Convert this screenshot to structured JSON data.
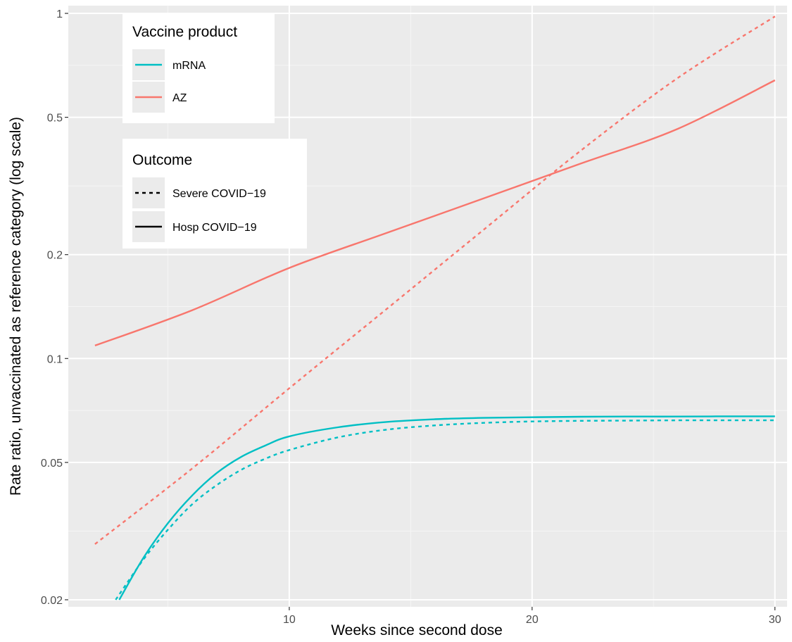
{
  "chart_data": {
    "type": "line",
    "xlabel": "Weeks since second dose",
    "ylabel": "Rate ratio, unvaccinated as reference category (log scale)",
    "x_scale": "linear",
    "y_scale": "log",
    "xlim": [
      0.9,
      30.5
    ],
    "ylim": [
      0.02,
      1
    ],
    "x_ticks": [
      10,
      20,
      30
    ],
    "x_tick_labels": [
      "10",
      "20",
      "30"
    ],
    "y_ticks": [
      0.02,
      0.05,
      0.1,
      0.2,
      0.5,
      1
    ],
    "y_tick_labels": [
      "0.02",
      "0.05",
      "0.1",
      "0.2",
      "0.5",
      "1"
    ],
    "grid": true,
    "background": "#ebebeb",
    "legends": [
      {
        "title": "Vaccine product",
        "placement": "top-left",
        "items": [
          {
            "label": "mRNA",
            "color": "#00bfc4"
          },
          {
            "label": "AZ",
            "color": "#f8766d"
          }
        ]
      },
      {
        "title": "Outcome",
        "placement": "top-left",
        "items": [
          {
            "label": "Severe COVID−19",
            "linetype": "dashed"
          },
          {
            "label": "Hosp COVID−19",
            "linetype": "solid"
          }
        ]
      }
    ],
    "series": [
      {
        "product": "AZ",
        "outcome": "Hosp COVID−19",
        "color": "#f8766d",
        "linetype": "solid",
        "x": [
          2,
          6,
          10,
          14,
          18,
          22,
          26,
          30
        ],
        "y": [
          0.109,
          0.138,
          0.183,
          0.231,
          0.291,
          0.367,
          0.463,
          0.64
        ]
      },
      {
        "product": "AZ",
        "outcome": "Severe COVID−19",
        "color": "#f8766d",
        "linetype": "dashed",
        "x": [
          2,
          6,
          10,
          14,
          18,
          22,
          26,
          30
        ],
        "y": [
          0.029,
          0.048,
          0.082,
          0.139,
          0.236,
          0.4,
          0.65,
          0.98
        ]
      },
      {
        "product": "mRNA",
        "outcome": "Hosp COVID−19",
        "color": "#00bfc4",
        "linetype": "solid",
        "x": [
          3,
          4,
          5,
          6,
          7,
          8,
          9,
          10,
          12,
          14,
          16,
          18,
          20,
          22,
          24,
          26,
          28,
          30
        ],
        "y": [
          0.02,
          0.0265,
          0.0333,
          0.0401,
          0.0465,
          0.0518,
          0.0559,
          0.0595,
          0.0632,
          0.0655,
          0.0667,
          0.0673,
          0.0676,
          0.0678,
          0.0679,
          0.0679,
          0.068,
          0.068
        ]
      },
      {
        "product": "mRNA",
        "outcome": "Severe COVID−19",
        "color": "#00bfc4",
        "linetype": "dashed",
        "x": [
          2.85,
          4,
          5,
          6,
          7,
          8,
          9,
          10,
          12,
          14,
          16,
          18,
          20,
          22,
          24,
          26,
          28,
          30
        ],
        "y": [
          0.02,
          0.0262,
          0.0319,
          0.0378,
          0.0429,
          0.0475,
          0.0512,
          0.0543,
          0.0591,
          0.0622,
          0.064,
          0.0651,
          0.0657,
          0.066,
          0.0661,
          0.0662,
          0.0662,
          0.0662
        ]
      }
    ]
  }
}
